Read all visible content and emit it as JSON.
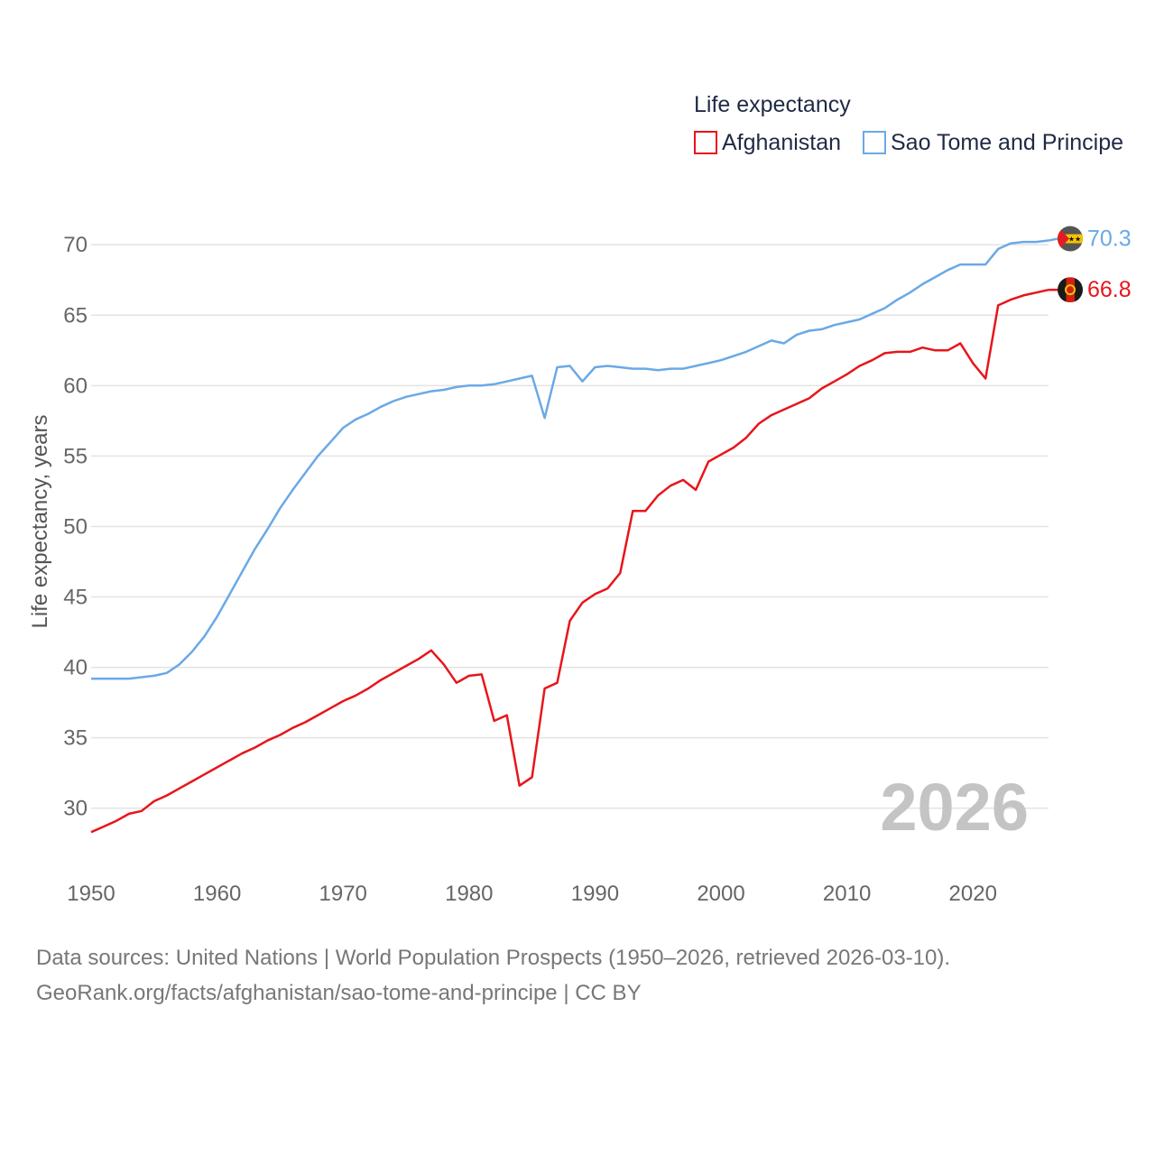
{
  "source": {
    "line1": "Data sources: United Nations | World Population Prospects (1950–2026, retrieved 2026-03-10).",
    "line2": "GeoRank.org/facts/afghanistan/sao-tome-and-principe | CC BY"
  },
  "chart_data": {
    "type": "line",
    "title": "Life expectancy",
    "ylabel": "Life expectancy, years",
    "xlabel": "",
    "year_label": "2026",
    "xlim": [
      1950,
      2026
    ],
    "ylim": [
      26.2,
      72
    ],
    "x_ticks": [
      1950,
      1960,
      1970,
      1980,
      1990,
      2000,
      2010,
      2020
    ],
    "y_ticks": [
      30,
      35,
      40,
      45,
      50,
      55,
      60,
      65,
      70
    ],
    "legend_position": "top-right",
    "x": [
      1950,
      1951,
      1952,
      1953,
      1954,
      1955,
      1956,
      1957,
      1958,
      1959,
      1960,
      1961,
      1962,
      1963,
      1964,
      1965,
      1966,
      1967,
      1968,
      1969,
      1970,
      1971,
      1972,
      1973,
      1974,
      1975,
      1976,
      1977,
      1978,
      1979,
      1980,
      1981,
      1982,
      1983,
      1984,
      1985,
      1986,
      1987,
      1988,
      1989,
      1990,
      1991,
      1992,
      1993,
      1994,
      1995,
      1996,
      1997,
      1998,
      1999,
      2000,
      2001,
      2002,
      2003,
      2004,
      2005,
      2006,
      2007,
      2008,
      2009,
      2010,
      2011,
      2012,
      2013,
      2014,
      2015,
      2016,
      2017,
      2018,
      2019,
      2020,
      2021,
      2022,
      2023,
      2024,
      2025,
      2026
    ],
    "series": [
      {
        "name": "Afghanistan",
        "color": "#e8151b",
        "end_label": "66.8",
        "flag_icon": "afghanistan-flag-icon",
        "values": [
          28.3,
          28.7,
          29.1,
          29.6,
          29.8,
          30.5,
          30.9,
          31.4,
          31.9,
          32.4,
          32.9,
          33.4,
          33.9,
          34.3,
          34.8,
          35.2,
          35.7,
          36.1,
          36.6,
          37.1,
          37.6,
          38.0,
          38.5,
          39.1,
          39.6,
          40.1,
          40.6,
          41.2,
          40.2,
          38.9,
          39.4,
          39.5,
          36.2,
          36.6,
          31.6,
          32.2,
          38.5,
          38.9,
          43.3,
          44.6,
          45.2,
          45.6,
          46.7,
          51.1,
          51.1,
          52.2,
          52.9,
          53.3,
          52.6,
          54.6,
          55.1,
          55.6,
          56.3,
          57.3,
          57.9,
          58.3,
          58.7,
          59.1,
          59.8,
          60.3,
          60.8,
          61.4,
          61.8,
          62.3,
          62.4,
          62.4,
          62.7,
          62.5,
          62.5,
          63.0,
          61.6,
          60.5,
          65.7,
          66.1,
          66.4,
          66.6,
          66.8
        ]
      },
      {
        "name": "Sao Tome and Principe",
        "color": "#6aa9e6",
        "end_label": "70.3",
        "flag_icon": "sao-tome-flag-icon",
        "values": [
          39.2,
          39.2,
          39.2,
          39.2,
          39.3,
          39.4,
          39.6,
          40.2,
          41.1,
          42.2,
          43.6,
          45.2,
          46.8,
          48.4,
          49.8,
          51.3,
          52.6,
          53.8,
          55.0,
          56.0,
          57.0,
          57.6,
          58.0,
          58.5,
          58.9,
          59.2,
          59.4,
          59.6,
          59.7,
          59.9,
          60.0,
          60.0,
          60.1,
          60.3,
          60.5,
          60.7,
          57.7,
          61.3,
          61.4,
          60.3,
          61.3,
          61.4,
          61.3,
          61.2,
          61.2,
          61.1,
          61.2,
          61.2,
          61.4,
          61.6,
          61.8,
          62.1,
          62.4,
          62.8,
          63.2,
          63.0,
          63.6,
          63.9,
          64.0,
          64.3,
          64.5,
          64.7,
          65.1,
          65.5,
          66.1,
          66.6,
          67.2,
          67.7,
          68.2,
          68.6,
          68.6,
          68.6,
          69.7,
          70.1,
          70.2,
          70.2,
          70.3
        ]
      }
    ]
  }
}
